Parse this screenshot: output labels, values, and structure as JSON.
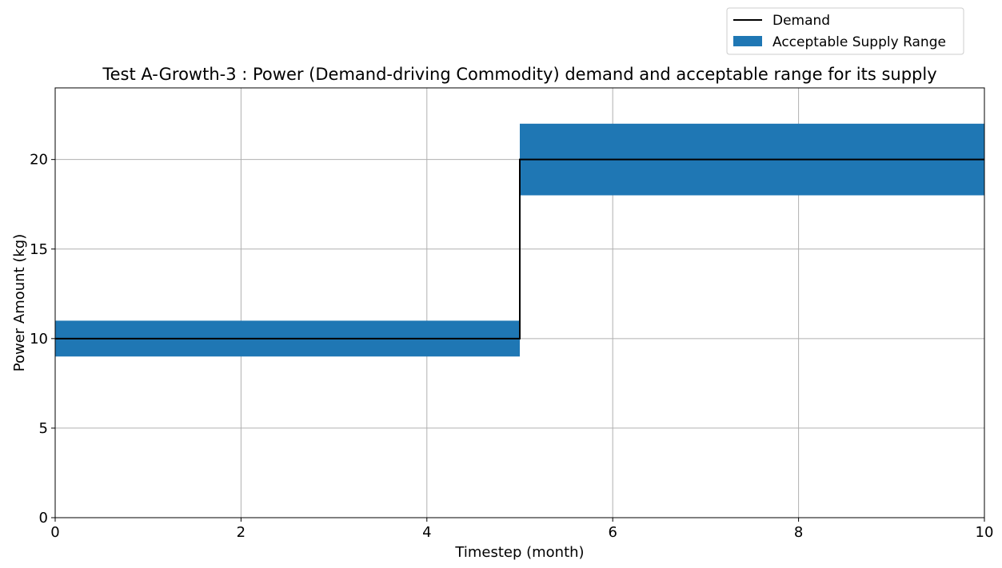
{
  "chart_data": {
    "type": "line",
    "title": "Test A-Growth-3 : Power (Demand-driving Commodity) demand and acceptable range for its supply",
    "xlabel": "Timestep (month)",
    "ylabel": "Power Amount (kg)",
    "xlim": [
      0,
      10
    ],
    "ylim": [
      0,
      24
    ],
    "xticks": [
      0,
      2,
      4,
      6,
      8,
      10
    ],
    "yticks": [
      0,
      5,
      10,
      15,
      20
    ],
    "grid": true,
    "legend_position": "top-right (outside, above plot)",
    "series": [
      {
        "name": "Demand",
        "kind": "step-line",
        "color": "#000000",
        "x": [
          0,
          5,
          5,
          10
        ],
        "y": [
          10,
          10,
          20,
          20
        ]
      },
      {
        "name": "Acceptable Supply Range",
        "kind": "band",
        "color": "#1f77b4",
        "segments": [
          {
            "x": [
              0,
              5
            ],
            "low": 9,
            "high": 11
          },
          {
            "x": [
              5,
              10
            ],
            "low": 18,
            "high": 22
          }
        ]
      }
    ]
  }
}
